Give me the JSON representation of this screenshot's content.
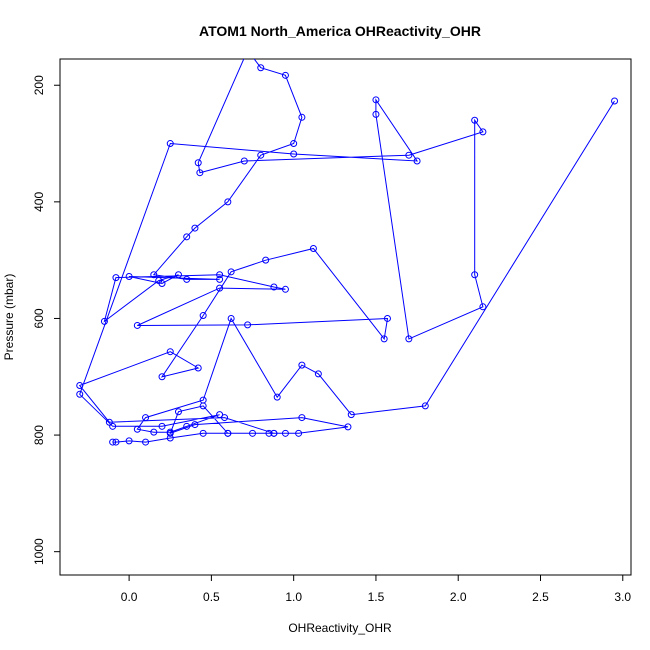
{
  "chart_data": {
    "type": "line",
    "title": "ATOM1 North_America OHReactivity_OHR",
    "xlabel": "OHReactivity_OHR",
    "ylabel": "Pressure (mbar)",
    "xlim": [
      -0.42,
      3.05
    ],
    "ylim": [
      1040,
      155
    ],
    "y_reversed": true,
    "x_ticks": [
      0.0,
      0.5,
      1.0,
      1.5,
      2.0,
      2.5,
      3.0
    ],
    "x_tick_labels": [
      "0.0",
      "0.5",
      "1.0",
      "1.5",
      "2.0",
      "2.5",
      "3.0"
    ],
    "y_ticks": [
      200,
      400,
      600,
      800,
      1000
    ],
    "y_tick_labels": [
      "200",
      "400",
      "600",
      "800",
      "1000"
    ],
    "grid": false,
    "color": "#0000ff",
    "marker": "open-circle",
    "series": [
      {
        "x": [
          -0.1,
          -0.08,
          0.0,
          0.1,
          0.25,
          0.45,
          0.6,
          0.85,
          1.03,
          1.33,
          1.05,
          0.4,
          0.25,
          0.3,
          0.45,
          0.6,
          0.75,
          0.88,
          0.95,
          0.88,
          0.58,
          -0.12,
          -0.3,
          0.25,
          0.42,
          0.2,
          0.45,
          0.62,
          0.83,
          1.12,
          1.55,
          1.57,
          0.72,
          0.05,
          0.55,
          0.95,
          0.88,
          0.55,
          -0.08,
          -0.15,
          0.18,
          0.3,
          0.2,
          0.0,
          0.55,
          0.35,
          0.15,
          0.35,
          0.4,
          0.6,
          0.8,
          1.0,
          1.05,
          0.95,
          0.8,
          0.72,
          0.42,
          0.43,
          0.7,
          1.7,
          2.15,
          2.1,
          2.1,
          2.15,
          1.7,
          1.5,
          1.5,
          1.75,
          1.0,
          0.25,
          -0.3,
          -0.1,
          0.2,
          0.55,
          0.35,
          0.25,
          0.15,
          0.05,
          0.1,
          0.45,
          0.62,
          0.9,
          1.05,
          1.15,
          1.35,
          1.8,
          2.95
        ],
        "y": [
          812,
          812,
          810,
          812,
          805,
          797,
          797,
          797,
          797,
          786,
          770,
          782,
          797,
          760,
          750,
          797,
          797,
          797,
          797,
          797,
          770,
          778,
          715,
          657,
          685,
          700,
          595,
          520,
          500,
          480,
          635,
          600,
          611,
          612,
          548,
          550,
          546,
          525,
          530,
          605,
          535,
          525,
          540,
          528,
          533,
          533,
          525,
          460,
          445,
          400,
          320,
          300,
          255,
          183,
          170,
          140,
          333,
          350,
          330,
          320,
          280,
          260,
          525,
          580,
          635,
          250,
          225,
          330,
          318,
          300,
          730,
          785,
          785,
          765,
          785,
          795,
          795,
          790,
          770,
          740,
          600,
          735,
          680,
          695,
          765,
          750,
          227
        ]
      }
    ]
  }
}
